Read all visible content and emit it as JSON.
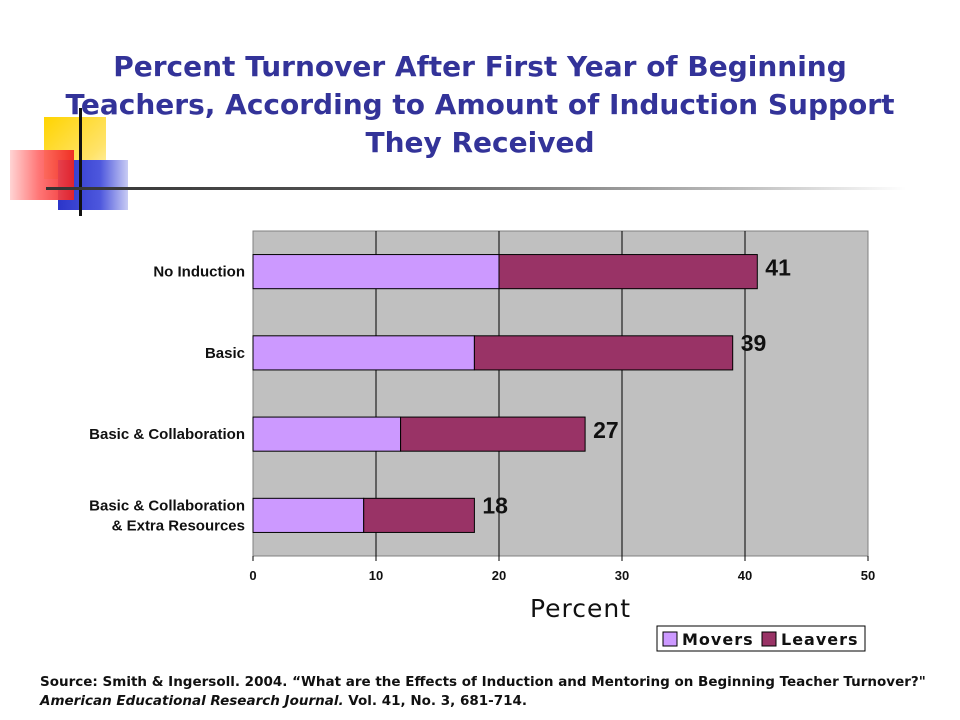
{
  "title": "Percent Turnover After First Year of Beginning Teachers, According to Amount of Induction Support They Received",
  "colors": {
    "title": "#333399",
    "movers": "#cc99ff",
    "leavers": "#993366",
    "plot_background": "#c0c0c0"
  },
  "chart_data": {
    "type": "bar",
    "orientation": "horizontal",
    "stacked": true,
    "categories": [
      "No Induction",
      "Basic",
      "Basic & Collaboration",
      "Basic & Collaboration & Extra Resources"
    ],
    "category_lines": [
      [
        "No Induction"
      ],
      [
        "Basic"
      ],
      [
        "Basic & Collaboration"
      ],
      [
        "Basic & Collaboration",
        "& Extra Resources"
      ]
    ],
    "series": [
      {
        "name": "Movers",
        "values": [
          20,
          18,
          12,
          9
        ]
      },
      {
        "name": "Leavers",
        "values": [
          21,
          21,
          15,
          9
        ]
      }
    ],
    "totals": [
      41,
      39,
      27,
      18
    ],
    "xlabel": "Percent",
    "ylabel": "",
    "xlim": [
      0,
      50
    ],
    "xticks": [
      0,
      10,
      20,
      30,
      40,
      50
    ],
    "grid": "vertical",
    "legend_position": "bottom-right"
  },
  "source": {
    "prefix": "Source: Smith & Ingersoll. 2004. “What are the Effects of Induction and Mentoring on Beginning Teacher Turnover?\" ",
    "journal": "American Educational Research Journal.",
    "suffix": "  Vol. 41, No. 3, 681-714."
  }
}
